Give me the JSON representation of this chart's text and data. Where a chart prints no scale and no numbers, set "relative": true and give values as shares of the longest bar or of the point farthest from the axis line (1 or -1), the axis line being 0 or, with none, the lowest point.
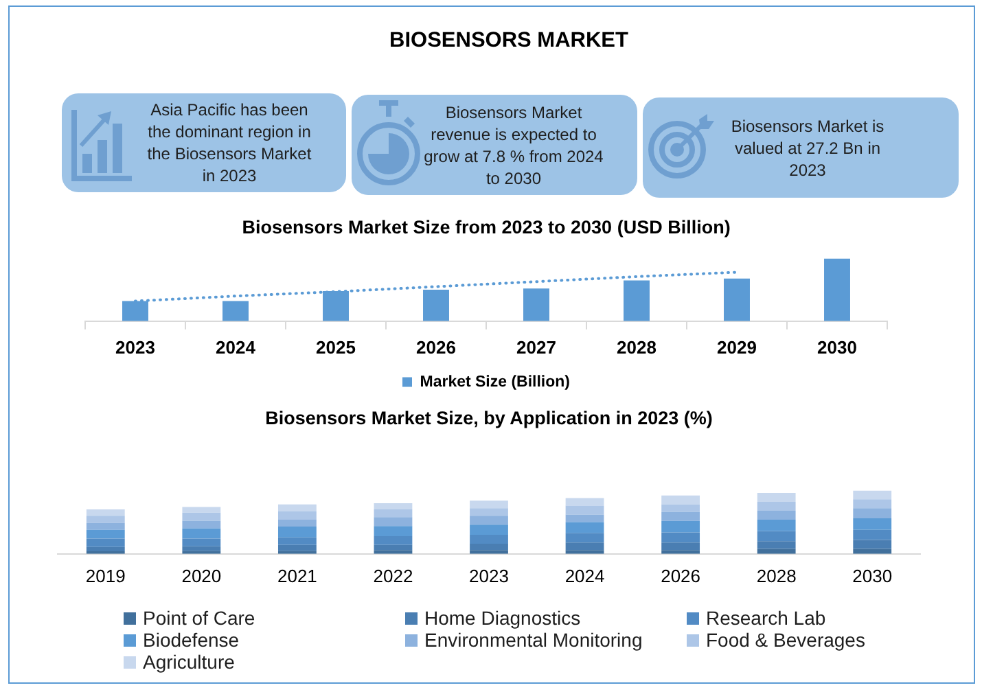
{
  "chart_data": [
    {
      "type": "other",
      "title": "BIOSENSORS MARKET",
      "annotations": [
        "Asia Pacific has been the dominant region in the Biosensors Market in 2023",
        "Biosensors Market revenue is expected to grow at 7.8 % from 2024 to 2030",
        "Biosensors Market is valued at 27.2 Bn in 2023"
      ]
    },
    {
      "type": "bar",
      "title": "Biosensors Market Size from 2023 to 2030 (USD Billion)",
      "categories": [
        "2023",
        "2024",
        "2025",
        "2026",
        "2027",
        "2028",
        "2029",
        "2030"
      ],
      "relative": true,
      "legend": "bottom",
      "series": [
        {
          "name": "Market Size (Billion)",
          "color": "#5b9bd5",
          "values": [
            0.32,
            0.32,
            0.48,
            0.5,
            0.52,
            0.65,
            0.68,
            1
          ]
        },
        {
          "type": "line",
          "color": "#5b9bd5",
          "line_style": "dotted",
          "values": [
            0.32,
            0.4,
            0.47,
            0.55,
            0.63,
            0.71,
            0.78,
            null
          ]
        }
      ]
    },
    {
      "type": "bar",
      "title": "Biosensors Market Size, by Application in 2023 (%)",
      "categories": [
        "2019",
        "2020",
        "2021",
        "2022",
        "2023",
        "2024",
        "2026",
        "2028",
        "2030"
      ],
      "relative": true,
      "stacked": true,
      "legend": "bottom",
      "series": [
        {
          "name": "Point of Care",
          "color": "#41709c",
          "values": [
            0.04,
            0.05,
            0.05,
            0.06,
            0.06,
            0.06,
            0.06,
            0.08,
            0.08
          ]
        },
        {
          "name": "Home Diagnostics",
          "color": "#4a7eb2",
          "values": [
            0.07,
            0.07,
            0.09,
            0.08,
            0.1,
            0.12,
            0.12,
            0.12,
            0.14
          ]
        },
        {
          "name": "Research Lab",
          "color": "#528bc4",
          "values": [
            0.13,
            0.12,
            0.12,
            0.14,
            0.14,
            0.15,
            0.16,
            0.16,
            0.16
          ]
        },
        {
          "name": "Biodefense",
          "color": "#5b9bd5",
          "values": [
            0.14,
            0.16,
            0.17,
            0.16,
            0.16,
            0.17,
            0.18,
            0.18,
            0.18
          ]
        },
        {
          "name": "Environmental Monitoring",
          "color": "#8db2de",
          "values": [
            0.11,
            0.12,
            0.11,
            0.14,
            0.14,
            0.12,
            0.14,
            0.14,
            0.16
          ]
        },
        {
          "name": "Food & Beverages",
          "color": "#adc6e7",
          "values": [
            0.11,
            0.13,
            0.13,
            0.12,
            0.12,
            0.14,
            0.12,
            0.14,
            0.14
          ]
        },
        {
          "name": "Agriculture",
          "color": "#c8d8ee",
          "values": [
            0.1,
            0.09,
            0.11,
            0.1,
            0.12,
            0.12,
            0.14,
            0.14,
            0.14
          ]
        }
      ]
    }
  ]
}
